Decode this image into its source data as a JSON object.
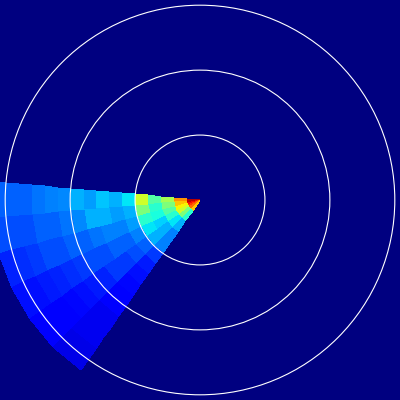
{
  "chart_data": {
    "type": "heatmap",
    "tick_labels": false,
    "xlim": [
      -3.08,
      3.08
    ],
    "ylim": [
      -3.08,
      3.08
    ],
    "rings": [
      1,
      2,
      3
    ],
    "angle_edges": [
      175,
      185,
      195,
      205,
      215,
      225,
      235
    ],
    "range_edges": [
      0.0,
      0.2,
      0.4,
      0.6,
      0.8,
      1.0,
      1.2,
      1.4,
      1.6,
      1.8,
      2.0,
      2.2,
      2.4,
      2.6,
      2.8,
      3.0,
      3.2
    ],
    "color_range": [
      0,
      1
    ],
    "cells": [
      [
        0.95,
        0.95,
        0.9,
        0.85,
        0.8,
        0.7
      ],
      [
        0.75,
        0.7,
        0.65,
        0.6,
        0.5,
        0.4
      ],
      [
        0.55,
        0.5,
        0.45,
        0.4,
        0.35,
        0.3
      ],
      [
        0.45,
        0.4,
        0.38,
        0.33,
        0.3,
        0.25
      ],
      [
        0.6,
        0.5,
        0.4,
        0.35,
        0.3,
        0.25
      ],
      [
        0.35,
        0.3,
        0.28,
        0.25,
        0.22,
        0.18
      ],
      [
        0.3,
        0.28,
        0.25,
        0.22,
        0.2,
        0.15
      ],
      [
        0.32,
        0.3,
        0.25,
        0.22,
        0.18,
        0.14
      ],
      [
        0.28,
        0.3,
        0.24,
        0.2,
        0.18,
        0.13
      ],
      [
        0.3,
        0.26,
        0.22,
        0.2,
        0.16,
        0.12
      ],
      [
        0.26,
        0.24,
        0.22,
        0.18,
        0.15,
        0.12
      ],
      [
        0.25,
        0.22,
        0.2,
        0.17,
        0.14,
        0.1
      ],
      [
        0.24,
        0.22,
        0.2,
        0.16,
        0.13,
        0.1
      ],
      [
        0.22,
        0.2,
        0.18,
        0.15,
        0.12,
        0.1
      ],
      [
        0.22,
        0.2,
        0.17,
        0.14,
        0.12,
        0.09
      ],
      [
        0.22,
        0.2,
        0.16,
        0.14,
        0.11,
        0.09
      ]
    ]
  }
}
